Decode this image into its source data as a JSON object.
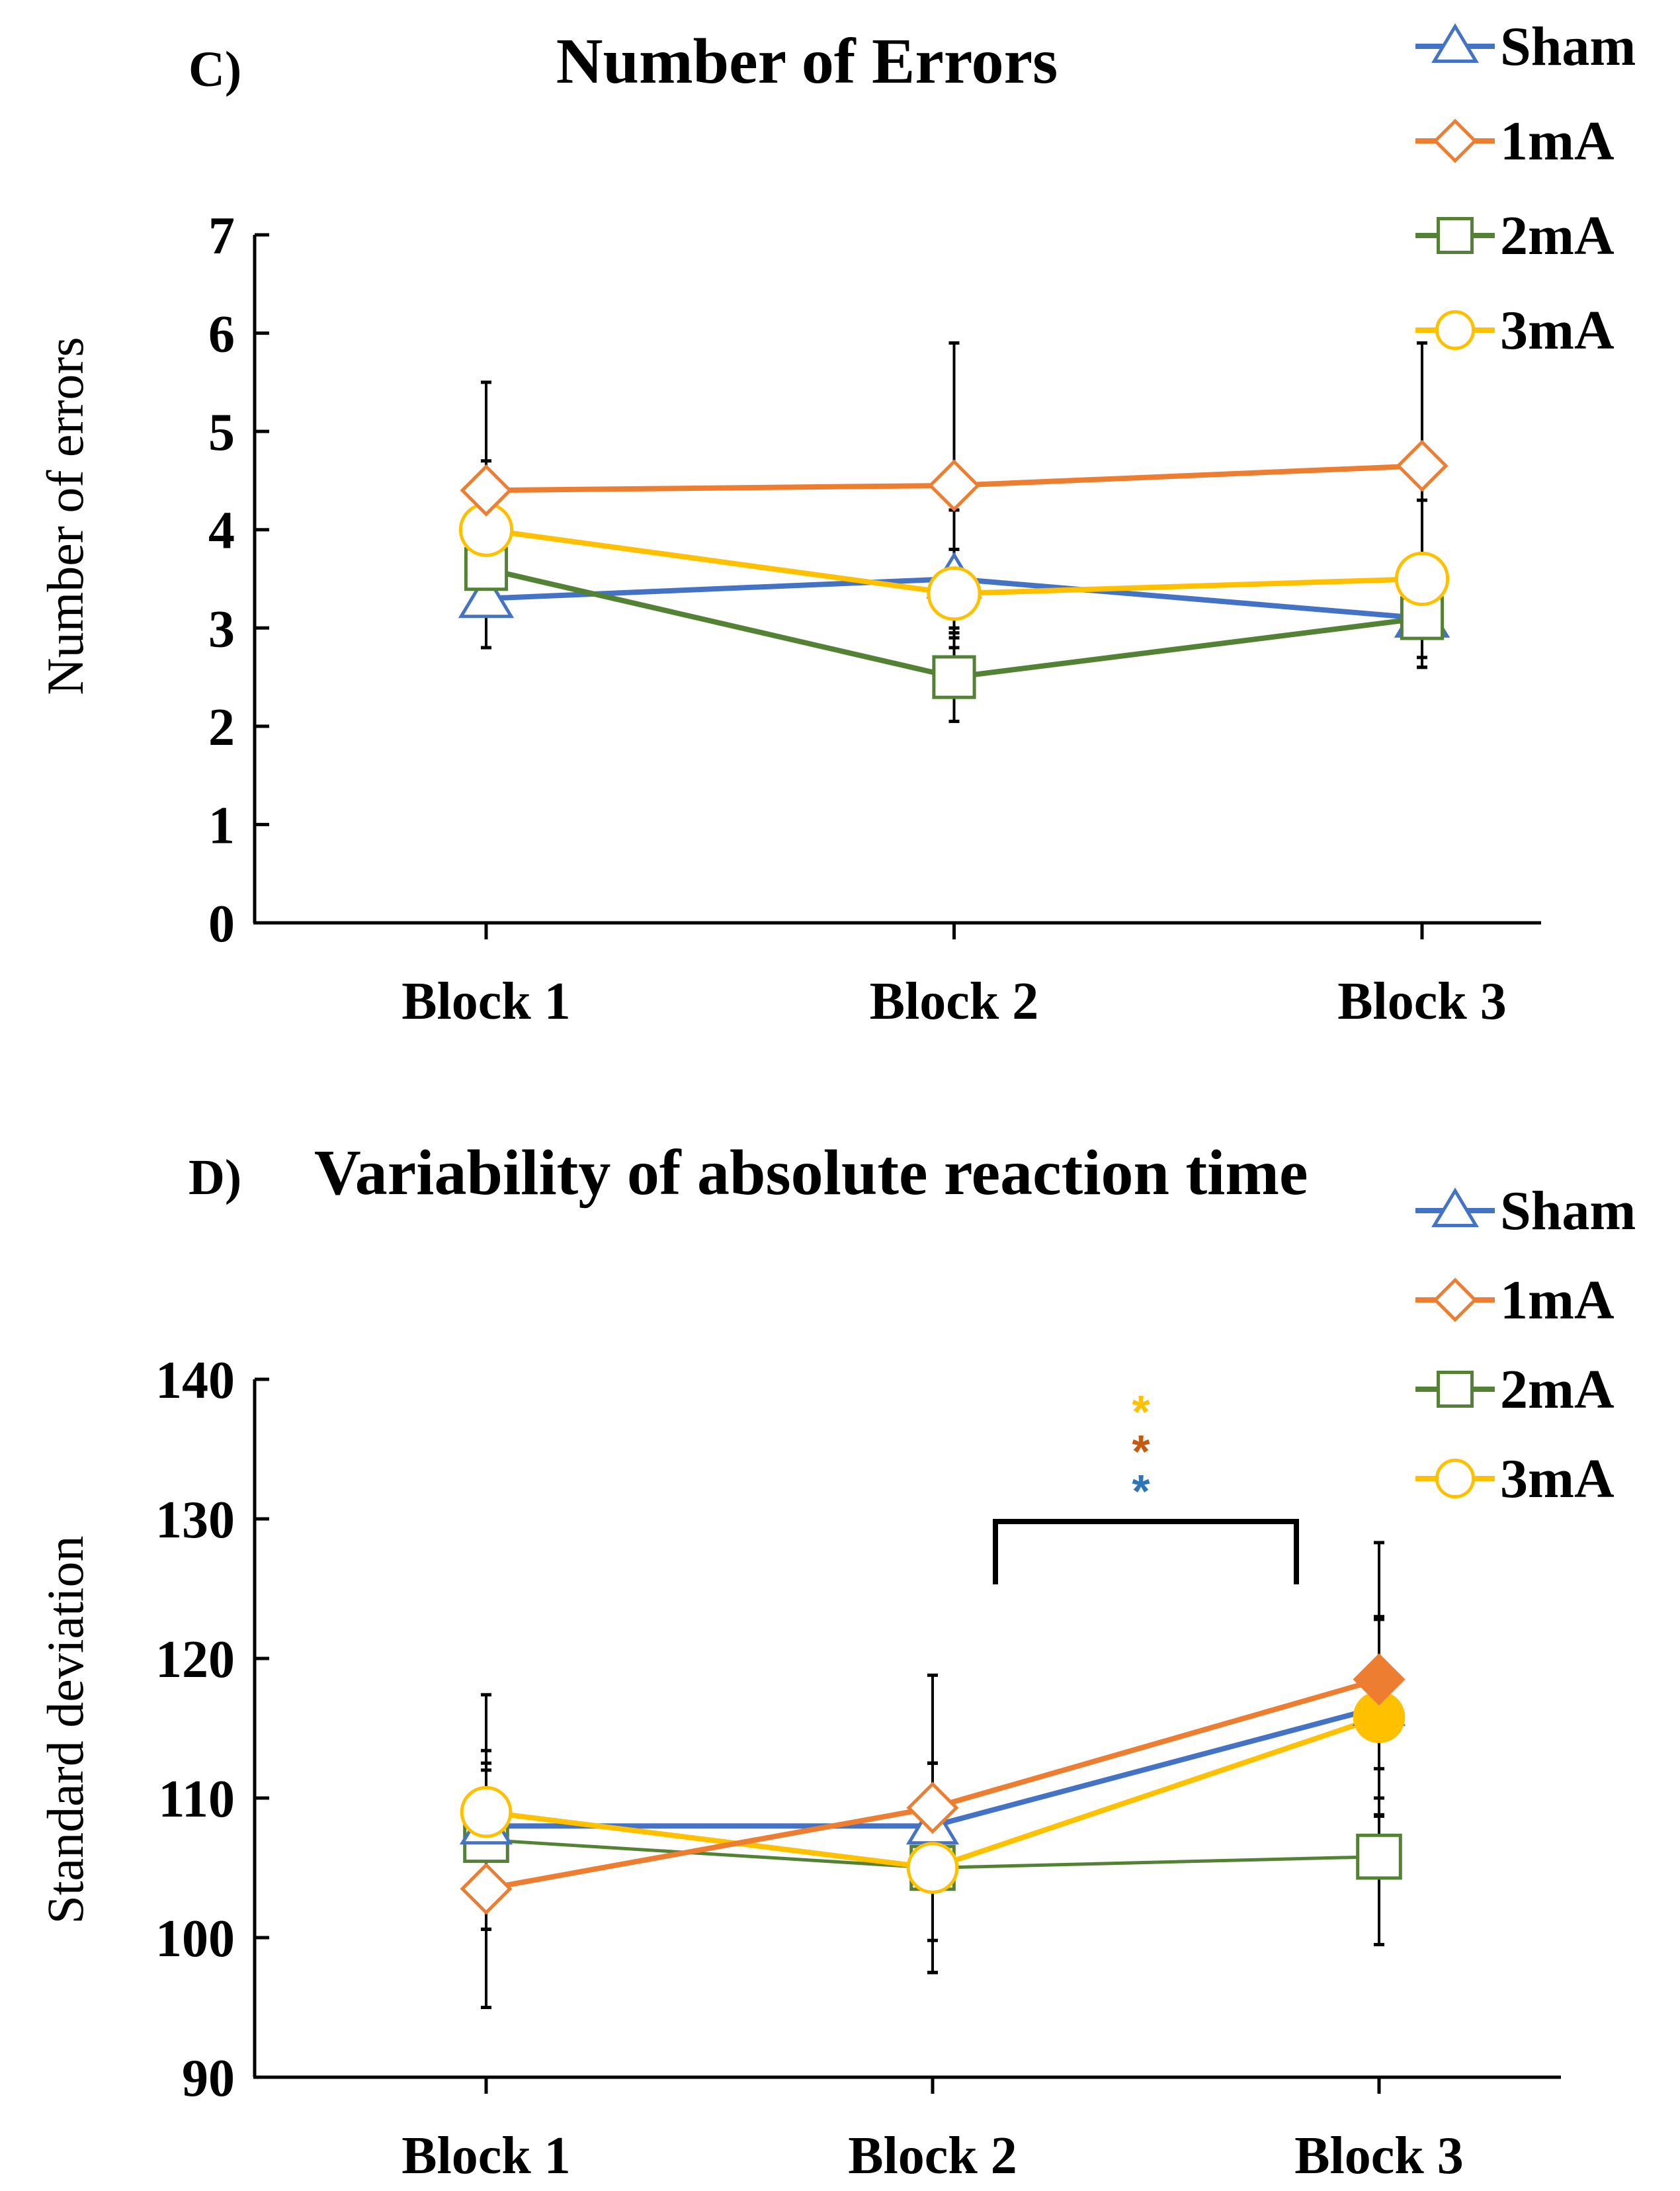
{
  "chart_data": [
    {
      "type": "line",
      "panel_label": "C)",
      "title": "Number of Errors",
      "xlabel": "",
      "ylabel": "Number of errors",
      "categories": [
        "Block 1",
        "Block 2",
        "Block 3"
      ],
      "ylim": [
        0,
        7
      ],
      "yticks": [
        "0",
        "1",
        "2",
        "3",
        "4",
        "5",
        "6",
        "7"
      ],
      "grid": false,
      "legend_position": "top-right",
      "series": [
        {
          "name": "Sham",
          "color": "#4472c4",
          "marker": "triangle",
          "values": [
            3.3,
            3.5,
            3.1
          ],
          "error": [
            0.5,
            0.7,
            0.5
          ]
        },
        {
          "name": "1mA",
          "color": "#ed7d31",
          "marker": "diamond",
          "values": [
            4.4,
            4.45,
            4.65
          ],
          "error": [
            1.1,
            1.45,
            1.25
          ]
        },
        {
          "name": "2mA",
          "color": "#548235",
          "marker": "square",
          "values": [
            3.6,
            2.5,
            3.1
          ],
          "error": [
            0.8,
            0.45,
            0.5
          ]
        },
        {
          "name": "3mA",
          "color": "#ffc000",
          "marker": "circle",
          "values": [
            4.0,
            3.35,
            3.5
          ],
          "error": [
            0.7,
            0.45,
            0.8
          ]
        }
      ]
    },
    {
      "type": "line",
      "panel_label": "D)",
      "title": "Variability of absolute reaction time",
      "xlabel": "",
      "ylabel": "Standard deviation",
      "categories": [
        "Block 1",
        "Block 2",
        "Block 3"
      ],
      "ylim": [
        90,
        140
      ],
      "yticks": [
        "90",
        "100",
        "110",
        "120",
        "130",
        "140"
      ],
      "grid": false,
      "legend_position": "top-right",
      "series": [
        {
          "name": "Sham",
          "color": "#4472c4",
          "marker": "triangle",
          "values": [
            108.0,
            108.0,
            116.5
          ],
          "error": [
            4.5,
            4.5,
            6.5
          ],
          "filled_points": [
            false,
            false,
            false
          ]
        },
        {
          "name": "1mA",
          "color": "#ed7d31",
          "marker": "diamond",
          "values": [
            103.5,
            109.3,
            118.5
          ],
          "error": [
            8.5,
            9.5,
            9.8
          ],
          "filled_points": [
            false,
            false,
            true
          ]
        },
        {
          "name": "2mA",
          "color": "#548235",
          "marker": "square",
          "values": [
            107.0,
            105.0,
            105.8
          ],
          "error": [
            6.4,
            7.5,
            6.3
          ],
          "filled_points": [
            false,
            false,
            false
          ]
        },
        {
          "name": "3mA",
          "color": "#ffc000",
          "marker": "circle",
          "values": [
            109.0,
            105.0,
            115.8
          ],
          "error": [
            8.4,
            7.5,
            7.0
          ],
          "filled_points": [
            false,
            false,
            true
          ]
        }
      ],
      "significance": {
        "from": "Block 2",
        "to": "Block 3",
        "stars": [
          {
            "text": "*",
            "color": "#ffc000"
          },
          {
            "text": "*",
            "color": "#c55a11"
          },
          {
            "text": "*",
            "color": "#2e75b6"
          }
        ]
      }
    }
  ]
}
